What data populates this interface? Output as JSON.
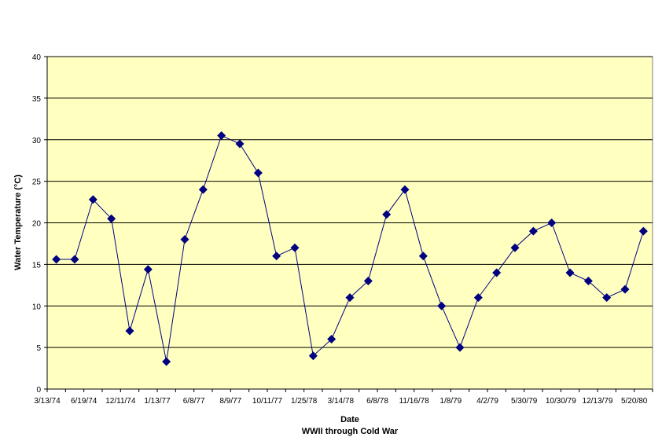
{
  "chart_data": {
    "type": "line",
    "title": "",
    "xlabel": "Date",
    "xlabel_sub": "WWII through Cold War",
    "ylabel": "Water Temperature (°C)",
    "ylim": [
      0,
      40
    ],
    "yticks": [
      0,
      5,
      10,
      15,
      20,
      25,
      30,
      35,
      40
    ],
    "grid": true,
    "legend": "none",
    "colors": {
      "plot_bg": "#FFFFC0",
      "line": "#000080",
      "marker": "#000080",
      "grid": "#000000"
    },
    "x_tick_labels": [
      "3/13/74",
      "6/19/74",
      "12/11/74",
      "1/13/77",
      "6/8/77",
      "8/9/77",
      "10/11/77",
      "1/25/78",
      "3/14/78",
      "6/8/78",
      "11/16/78",
      "1/8/79",
      "4/2/79",
      "5/30/79",
      "10/30/79",
      "12/13/79",
      "5/20/80"
    ],
    "series": [
      {
        "name": "",
        "marker": "diamond",
        "values": [
          15.6,
          15.6,
          22.8,
          20.5,
          7.0,
          14.4,
          3.3,
          18.0,
          24.0,
          30.5,
          29.5,
          26.0,
          16.0,
          17.0,
          4.0,
          6.0,
          11.0,
          13.0,
          21.0,
          24.0,
          16.0,
          10.0,
          5.0,
          11.0,
          14.0,
          17.0,
          19.0,
          20.0,
          14.0,
          13.0,
          11.0,
          12.0,
          19.0
        ]
      }
    ]
  }
}
